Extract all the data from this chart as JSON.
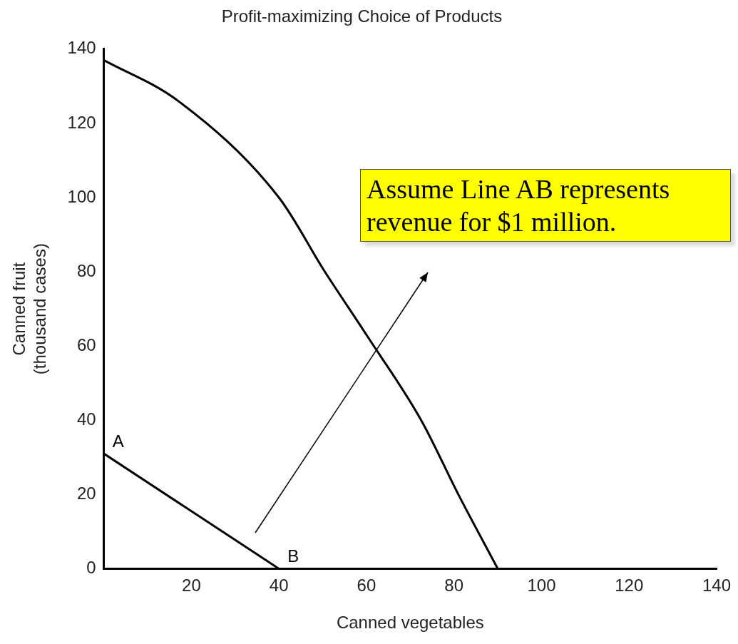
{
  "chart_data": {
    "type": "line",
    "title": "Profit-maximizing Choice of Products",
    "xlabel": "Canned vegetables",
    "ylabel": "Canned fruit\n(thousand cases)",
    "series": [
      {
        "color": "#000000",
        "x": [
          0,
          17,
          40,
          50.5,
          60,
          72.5,
          81,
          90
        ],
        "values": [
          137,
          126,
          100,
          80,
          63,
          40,
          20,
          0
        ]
      },
      {
        "color": "#000000",
        "x": [
          0,
          40
        ],
        "values": [
          31,
          0
        ]
      }
    ],
    "xlim": [
      0,
      140
    ],
    "ylim": [
      0,
      140
    ],
    "xticks": [
      20,
      40,
      60,
      80,
      100,
      120,
      140
    ],
    "yticks": [
      0,
      20,
      40,
      60,
      80,
      100,
      120,
      140
    ],
    "grid": false,
    "legend": false,
    "marker": "none",
    "line_style": "solid",
    "annotations": [
      {
        "text": "A",
        "x": 0,
        "y": 31
      },
      {
        "text": "B",
        "x": 40,
        "y": 0
      },
      "Assume Line AB represents revenue for $1 million."
    ]
  }
}
